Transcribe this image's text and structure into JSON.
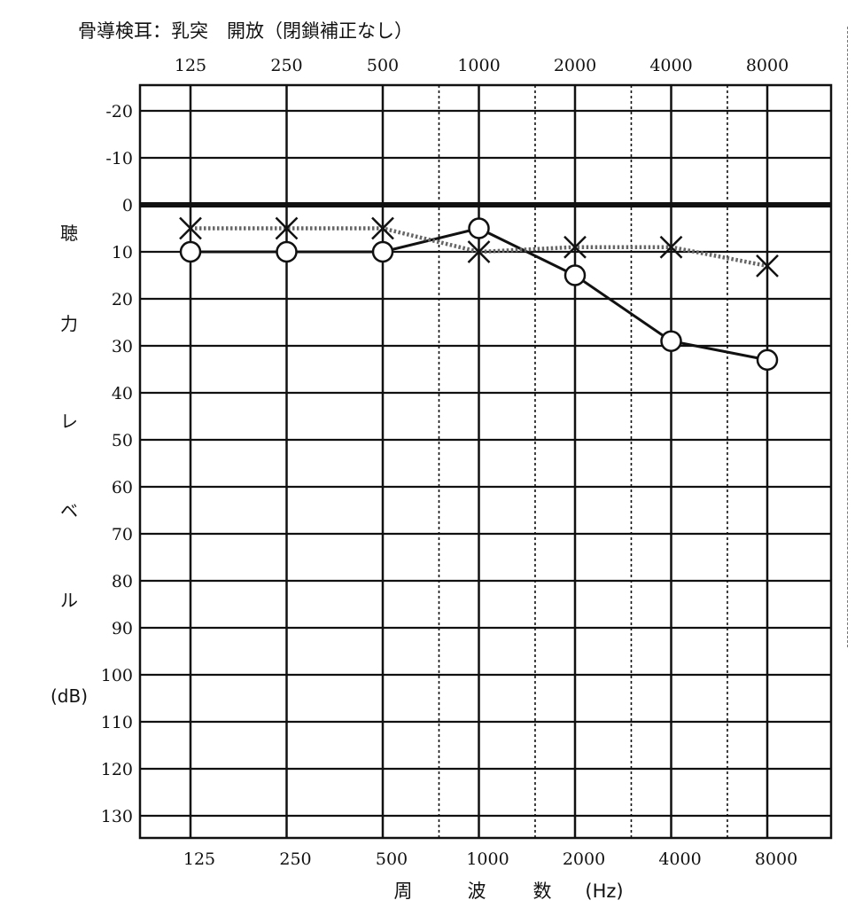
{
  "chart_data": {
    "type": "line",
    "title": "骨導検耳：乳突　開放（閉鎖補正なし）",
    "x_tick_labels": [
      "125",
      "250",
      "500",
      "1000",
      "2000",
      "4000",
      "8000"
    ],
    "x_axis_label_chars": [
      "周",
      "波",
      "数",
      "(Hz)"
    ],
    "y_axis_label_chars": [
      "聴",
      "力",
      "レ",
      "ベ",
      "ル",
      "(dB)"
    ],
    "y_tick_labels": [
      "-20",
      "-10",
      "0",
      "10",
      "20",
      "30",
      "40",
      "50",
      "60",
      "70",
      "80",
      "90",
      "100",
      "110",
      "120",
      "130"
    ],
    "ylim": [
      -25,
      135
    ],
    "y_inverted": true,
    "x_scale": "log2 (octave)",
    "grid": true,
    "series": [
      {
        "marker": "circle",
        "line_style": "solid",
        "x": [
          125,
          250,
          500,
          1000,
          2000,
          4000,
          8000
        ],
        "values": [
          10,
          10,
          10,
          5,
          15,
          29,
          33
        ]
      },
      {
        "marker": "cross",
        "line_style": "dotted",
        "x": [
          125,
          250,
          500,
          1000,
          2000,
          4000,
          8000
        ],
        "values": [
          5,
          5,
          5,
          10,
          9,
          9,
          13
        ]
      }
    ]
  }
}
